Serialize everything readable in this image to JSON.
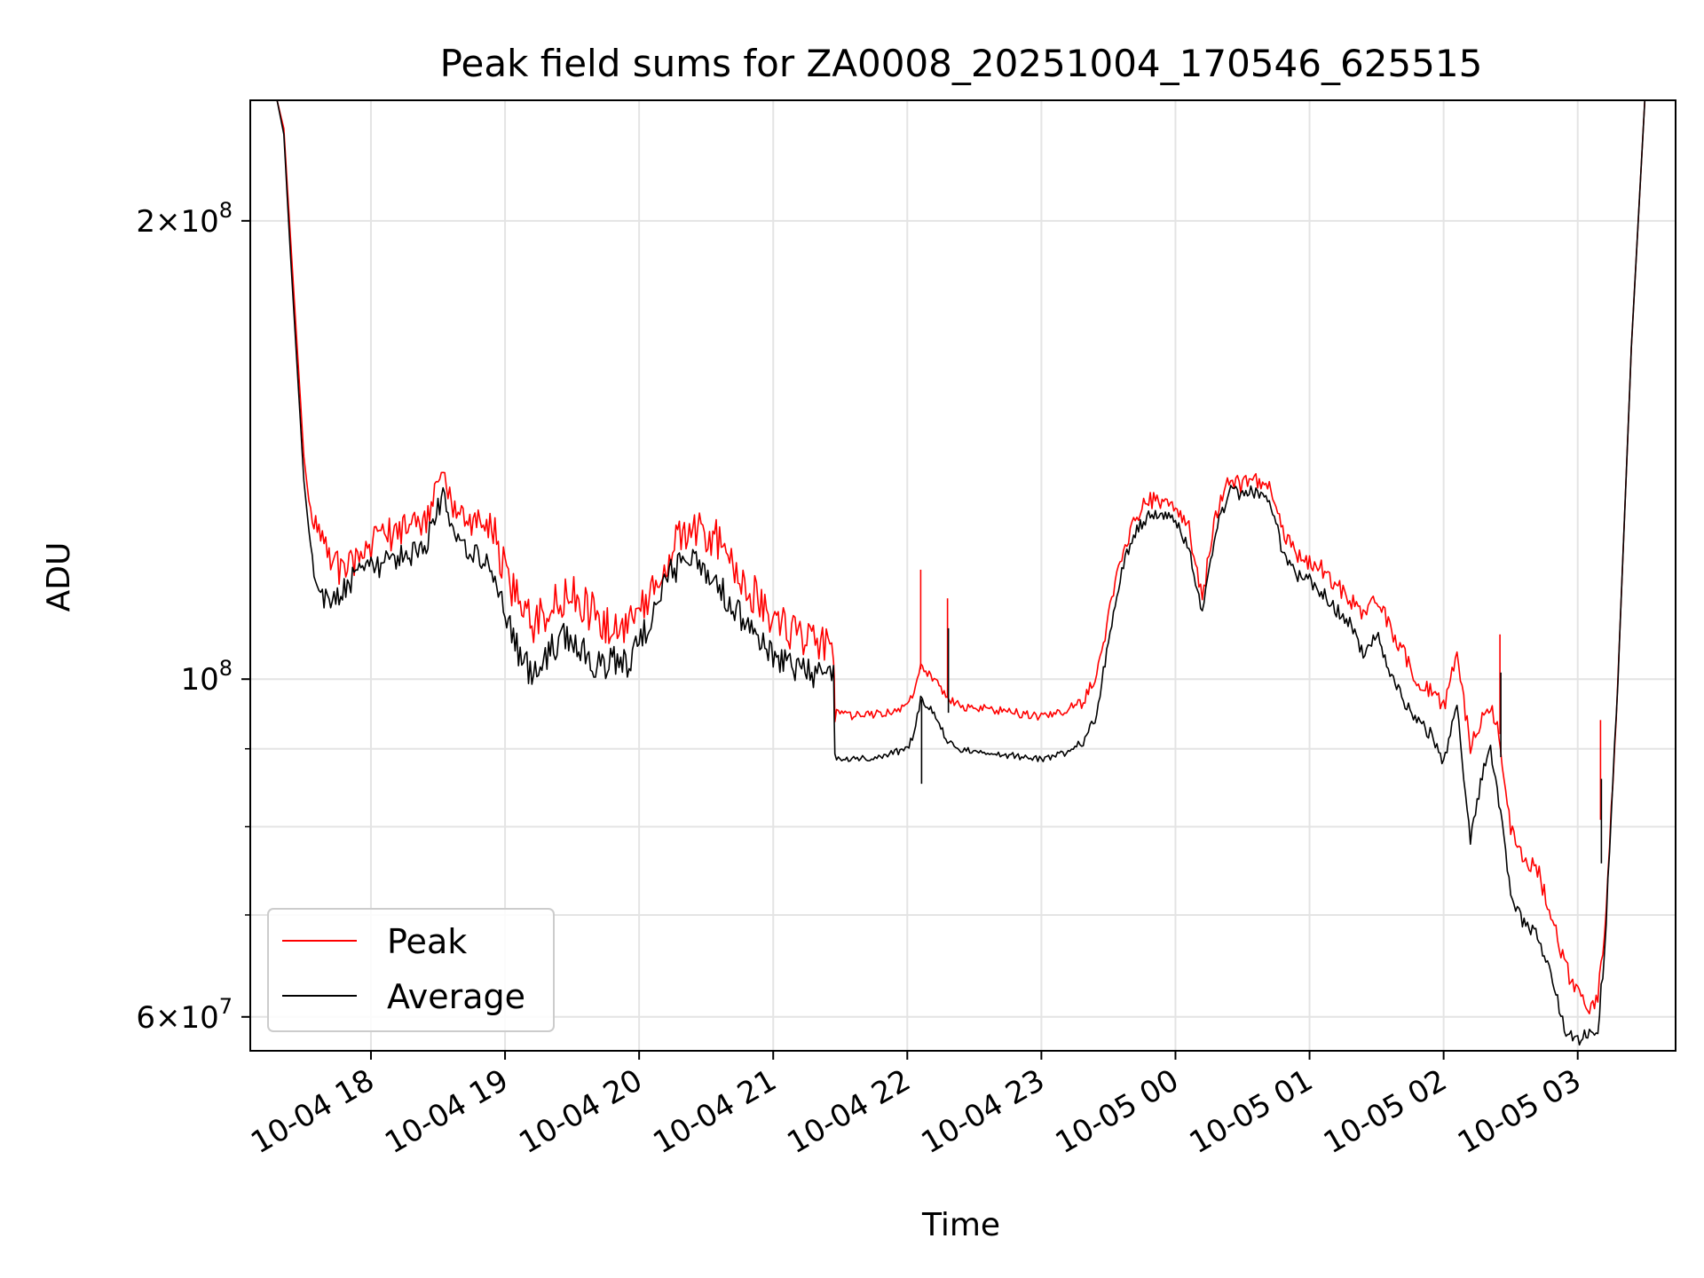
{
  "chart_data": {
    "type": "line",
    "title": "Peak field sums for ZA0008_20251004_170546_625515",
    "xlabel": "Time",
    "ylabel": "ADU",
    "yscale": "log",
    "grid": true,
    "legend_position": "lower-left",
    "xlim": [
      17.1,
      27.73
    ],
    "ylim": [
      57000000,
      240000000
    ],
    "x_ticks": [
      {
        "value": 18,
        "label": "10-04 18"
      },
      {
        "value": 19,
        "label": "10-04 19"
      },
      {
        "value": 20,
        "label": "10-04 20"
      },
      {
        "value": 21,
        "label": "10-04 21"
      },
      {
        "value": 22,
        "label": "10-04 22"
      },
      {
        "value": 23,
        "label": "10-04 23"
      },
      {
        "value": 24,
        "label": "10-05 00"
      },
      {
        "value": 25,
        "label": "10-05 01"
      },
      {
        "value": 26,
        "label": "10-05 02"
      },
      {
        "value": 27,
        "label": "10-05 03"
      }
    ],
    "y_ticks_major": [
      {
        "value": 60000000,
        "mantissa": "6",
        "exponent": "7"
      },
      {
        "value": 100000000,
        "mantissa": "",
        "exponent": "8"
      },
      {
        "value": 200000000,
        "mantissa": "2",
        "exponent": "8"
      }
    ],
    "y_ticks_minor": [
      70000000,
      80000000,
      90000000
    ],
    "x_unit_note": "hours since 2025-10-04 00:00",
    "series": [
      {
        "name": "Peak",
        "color": "#ff0000",
        "x": [
          17.2,
          17.3,
          17.35,
          17.4,
          17.45,
          17.5,
          17.55,
          17.6,
          17.7,
          17.8,
          17.9,
          18.0,
          18.1,
          18.2,
          18.3,
          18.4,
          18.5,
          18.55,
          18.6,
          18.7,
          18.8,
          18.9,
          19.0,
          19.1,
          19.2,
          19.3,
          19.4,
          19.5,
          19.6,
          19.7,
          19.8,
          19.9,
          20.0,
          20.1,
          20.2,
          20.3,
          20.4,
          20.5,
          20.6,
          20.7,
          20.8,
          20.9,
          21.0,
          21.1,
          21.2,
          21.3,
          21.45,
          21.46,
          21.6,
          21.8,
          22.0,
          22.05,
          22.1,
          22.15,
          22.2,
          22.3,
          22.4,
          22.6,
          22.8,
          23.0,
          23.2,
          23.3,
          23.4,
          23.5,
          23.6,
          23.7,
          23.8,
          23.9,
          24.0,
          24.1,
          24.2,
          24.3,
          24.4,
          24.5,
          24.6,
          24.7,
          24.8,
          24.9,
          25.0,
          25.1,
          25.2,
          25.3,
          25.4,
          25.5,
          25.6,
          25.7,
          25.8,
          25.9,
          26.0,
          26.1,
          26.2,
          26.3,
          26.35,
          26.4,
          26.5,
          26.6,
          26.7,
          26.8,
          26.9,
          27.0,
          27.1,
          27.15,
          27.2,
          27.3,
          27.4,
          27.5,
          27.6,
          27.73
        ],
        "values": [
          240000000,
          240000000,
          230000000,
          195000000,
          165000000,
          140000000,
          128000000,
          124000000,
          120000000,
          117000000,
          120000000,
          122000000,
          125000000,
          124000000,
          127000000,
          126000000,
          133000000,
          136000000,
          131000000,
          128000000,
          127000000,
          126000000,
          118000000,
          112000000,
          109000000,
          110000000,
          113000000,
          114000000,
          112000000,
          109000000,
          108000000,
          109000000,
          110000000,
          115000000,
          120000000,
          124000000,
          126000000,
          125000000,
          123000000,
          119000000,
          115000000,
          113000000,
          110000000,
          108000000,
          107000000,
          106000000,
          106000000,
          95000000,
          94500000,
          95000000,
          96000000,
          98000000,
          102000000,
          101000000,
          100000000,
          97000000,
          96000000,
          95500000,
          95000000,
          94500000,
          95500000,
          97000000,
          100000000,
          110000000,
          121000000,
          128000000,
          131000000,
          131000000,
          130000000,
          126000000,
          113000000,
          128000000,
          135000000,
          134000000,
          135000000,
          134000000,
          125000000,
          121000000,
          119000000,
          118000000,
          115000000,
          113000000,
          110000000,
          113000000,
          108000000,
          104000000,
          100000000,
          98000000,
          96000000,
          104000000,
          90000000,
          95000000,
          96000000,
          93000000,
          80000000,
          76000000,
          75000000,
          70000000,
          65000000,
          62000000,
          61000000,
          62000000,
          68000000,
          100000000,
          165000000,
          240000000,
          240000000,
          240000000
        ]
      },
      {
        "name": "Average",
        "color": "#000000",
        "x": [
          17.2,
          17.3,
          17.35,
          17.4,
          17.45,
          17.5,
          17.55,
          17.6,
          17.7,
          17.8,
          17.9,
          18.0,
          18.1,
          18.2,
          18.3,
          18.4,
          18.5,
          18.55,
          18.6,
          18.7,
          18.8,
          18.9,
          19.0,
          19.1,
          19.2,
          19.3,
          19.4,
          19.5,
          19.6,
          19.7,
          19.8,
          19.9,
          20.0,
          20.1,
          20.2,
          20.3,
          20.4,
          20.5,
          20.6,
          20.7,
          20.8,
          20.9,
          21.0,
          21.1,
          21.2,
          21.3,
          21.45,
          21.46,
          21.6,
          21.8,
          22.0,
          22.05,
          22.1,
          22.15,
          22.2,
          22.3,
          22.4,
          22.6,
          22.8,
          23.0,
          23.2,
          23.3,
          23.4,
          23.5,
          23.6,
          23.7,
          23.8,
          23.9,
          24.0,
          24.1,
          24.2,
          24.3,
          24.4,
          24.5,
          24.6,
          24.7,
          24.8,
          24.9,
          25.0,
          25.1,
          25.2,
          25.3,
          25.4,
          25.5,
          25.6,
          25.7,
          25.8,
          25.9,
          26.0,
          26.1,
          26.2,
          26.3,
          26.35,
          26.4,
          26.5,
          26.6,
          26.7,
          26.8,
          26.9,
          27.0,
          27.1,
          27.15,
          27.2,
          27.3,
          27.4,
          27.5,
          27.6,
          27.73
        ],
        "values": [
          240000000,
          240000000,
          228000000,
          190000000,
          160000000,
          135000000,
          122000000,
          114000000,
          112000000,
          115000000,
          117000000,
          118000000,
          119000000,
          120000000,
          121000000,
          122000000,
          130000000,
          132000000,
          126000000,
          122000000,
          121000000,
          119000000,
          110000000,
          104000000,
          101000000,
          103000000,
          106000000,
          107000000,
          104000000,
          102000000,
          103000000,
          102000000,
          105000000,
          110000000,
          116000000,
          119000000,
          120000000,
          118000000,
          115000000,
          112000000,
          109000000,
          106000000,
          103000000,
          102000000,
          101000000,
          100500000,
          101000000,
          89000000,
          88500000,
          89000000,
          90000000,
          92000000,
          97000000,
          96000000,
          95000000,
          91000000,
          90000000,
          89500000,
          89000000,
          88500000,
          89500000,
          91000000,
          94000000,
          106000000,
          118000000,
          125000000,
          128000000,
          128000000,
          127000000,
          122000000,
          110000000,
          125000000,
          133000000,
          132000000,
          133000000,
          132000000,
          121000000,
          117000000,
          116000000,
          114000000,
          111000000,
          109000000,
          104000000,
          107000000,
          101000000,
          97000000,
          94000000,
          92000000,
          88000000,
          96000000,
          78000000,
          88000000,
          90000000,
          85000000,
          72000000,
          69000000,
          68000000,
          64000000,
          59000000,
          58000000,
          58500000,
          59000000,
          66000000,
          100000000,
          165000000,
          240000000,
          240000000,
          240000000
        ]
      }
    ]
  }
}
